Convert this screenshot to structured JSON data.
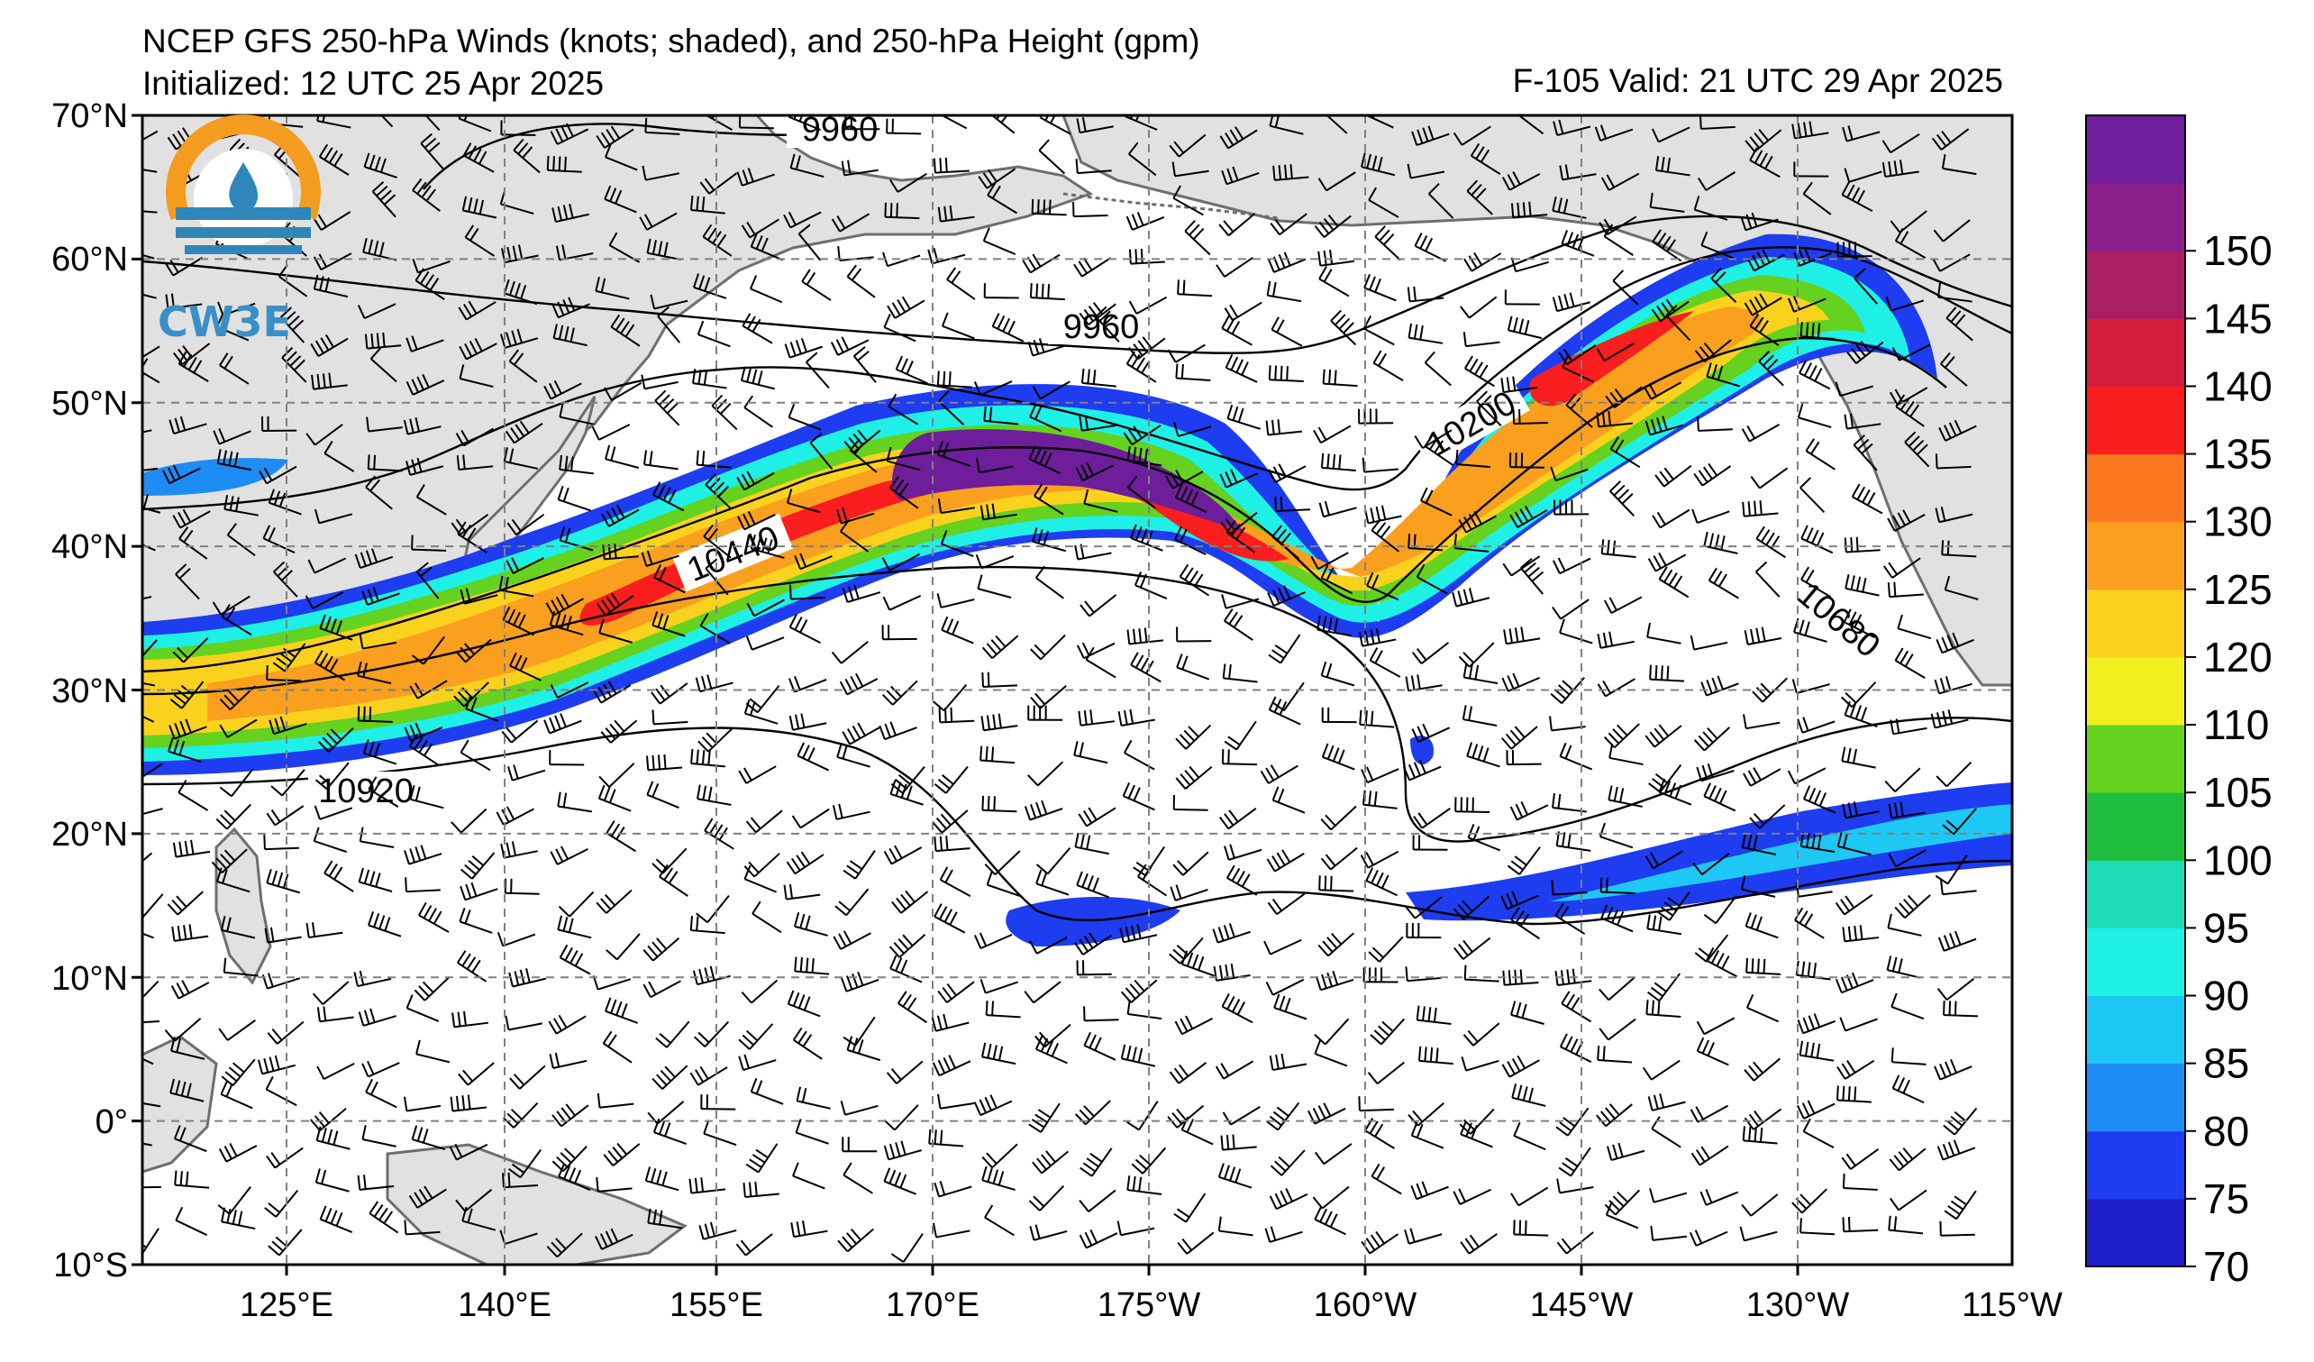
{
  "header": {
    "title": "NCEP GFS 250-hPa Winds (knots; shaded), and 250-hPa Height (gpm)",
    "initialized": "Initialized: 12 UTC 25 Apr 2025",
    "valid": "F-105  Valid: 21 UTC 29 Apr 2025"
  },
  "logo": {
    "text": "CW3E",
    "ring_color": "#f39c1f",
    "water_color": "#2f86b8"
  },
  "map": {
    "lat_labels": [
      "70°N",
      "60°N",
      "50°N",
      "40°N",
      "30°N",
      "20°N",
      "10°N",
      "0°",
      "10°S"
    ],
    "lon_labels": [
      "125°E",
      "140°E",
      "155°E",
      "170°E",
      "175°W",
      "160°W",
      "145°W",
      "130°W",
      "115°W"
    ],
    "land_color": "#e1e1e1",
    "coast_color": "#6e6e6e",
    "grid_style": "dashed"
  },
  "contours": [
    {
      "label": "9960"
    },
    {
      "label": "9960"
    },
    {
      "label": "10200"
    },
    {
      "label": "10440"
    },
    {
      "label": "10680"
    },
    {
      "label": "10920"
    }
  ],
  "colorbar": {
    "labels": [
      "70",
      "75",
      "80",
      "85",
      "90",
      "95",
      "100",
      "105",
      "110",
      "120",
      "125",
      "130",
      "135",
      "140",
      "145",
      "150"
    ],
    "colors": [
      "#1e1ec8",
      "#1e3cf0",
      "#1e8cf5",
      "#1ec8f5",
      "#1ef0e6",
      "#1edcb4",
      "#1ebe3c",
      "#64d21e",
      "#f0f01e",
      "#fad21e",
      "#faa01e",
      "#fa781e",
      "#fa1e1e",
      "#d21e3c",
      "#aa1e64",
      "#8c1e8c",
      "#6e1e9a"
    ]
  }
}
